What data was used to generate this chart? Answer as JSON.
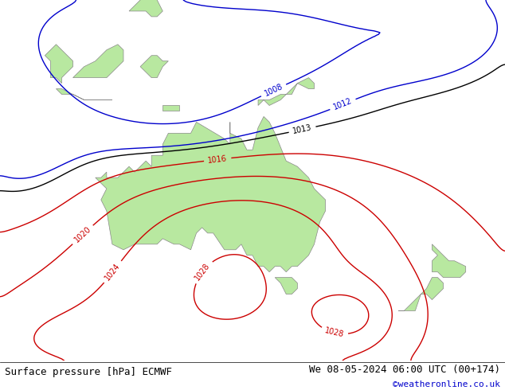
{
  "title_left": "Surface pressure [hPa] ECMWF",
  "title_right": "We 08-05-2024 06:00 UTC (00+174)",
  "copyright": "©weatheronline.co.uk",
  "land_color": "#b8e8a0",
  "ocean_color": "#d0d0d0",
  "fig_width": 6.34,
  "fig_height": 4.9,
  "dpi": 100,
  "font_size_title": 9,
  "font_size_copyright": 8,
  "font_size_contour_label": 7,
  "extent_lon": [
    95,
    185
  ],
  "extent_lat": [
    -55,
    10
  ]
}
